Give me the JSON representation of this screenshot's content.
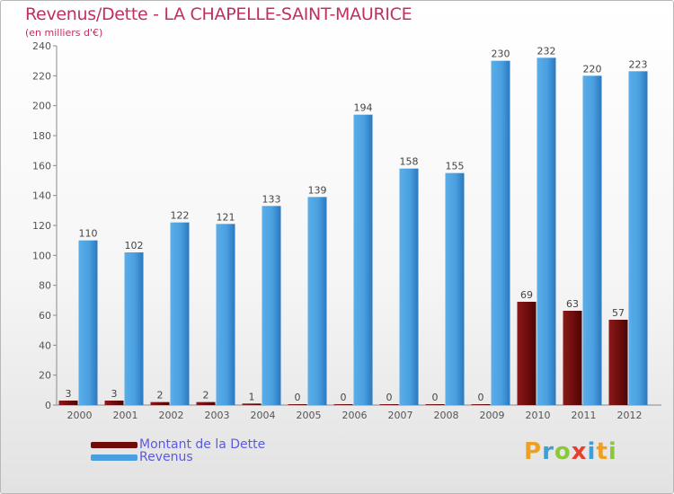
{
  "title": "Revenus/Dette - LA CHAPELLE-SAINT-MAURICE",
  "subtitle": "(en milliers d'€)",
  "logo": {
    "text": "Proxiti",
    "letters": [
      {
        "ch": "P",
        "color": "#f0a020"
      },
      {
        "ch": "r",
        "color": "#3aa0d8"
      },
      {
        "ch": "o",
        "color": "#8cc83c"
      },
      {
        "ch": "x",
        "color": "#e8402c"
      },
      {
        "ch": "i",
        "color": "#3aa0d8"
      },
      {
        "ch": "t",
        "color": "#f0a020"
      },
      {
        "ch": "i",
        "color": "#8cc83c"
      }
    ]
  },
  "legend": [
    {
      "label": "Montant de la Dette",
      "color": "#6e0c0c"
    },
    {
      "label": "Revenus",
      "color": "#4a9fe0"
    }
  ],
  "chart_data": {
    "type": "bar",
    "categories": [
      "2000",
      "2001",
      "2002",
      "2003",
      "2004",
      "2005",
      "2006",
      "2007",
      "2008",
      "2009",
      "2010",
      "2011",
      "2012"
    ],
    "series": [
      {
        "name": "Montant de la Dette",
        "color": "#6e0c0c",
        "values": [
          3,
          3,
          2,
          2,
          1,
          0,
          0,
          0,
          0,
          0,
          69,
          63,
          57
        ]
      },
      {
        "name": "Revenus",
        "color": "#4a9fe0",
        "values": [
          110,
          102,
          122,
          121,
          133,
          139,
          194,
          158,
          155,
          230,
          232,
          220,
          223
        ]
      }
    ],
    "ylim": [
      0,
      240
    ],
    "yticks": [
      0,
      20,
      40,
      60,
      80,
      100,
      120,
      140,
      160,
      180,
      200,
      220,
      240
    ],
    "grid": false,
    "legend_position": "bottom-left"
  }
}
